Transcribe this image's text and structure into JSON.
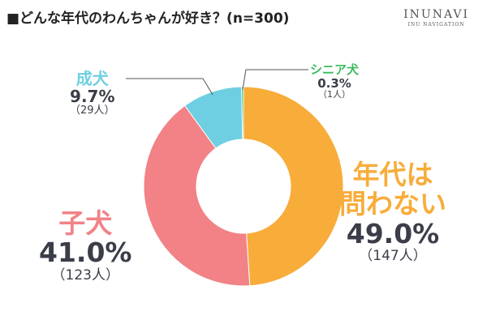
{
  "header": {
    "title": "■どんな年代のわんちゃんが好き？(n=300)",
    "logo_main": "INUNAVI",
    "logo_sub": "INU NAVIGATION"
  },
  "chart_data": {
    "type": "pie",
    "donut": true,
    "categories": [
      "年代は問わない",
      "子犬",
      "成犬",
      "シニア犬"
    ],
    "values": [
      49.0,
      41.0,
      9.7,
      0.3
    ],
    "percent_labels": [
      "49.0%",
      "41.0%",
      "9.7%",
      "0.3%"
    ],
    "count_labels": [
      "（147人）",
      "（123人）",
      "（29人）",
      "（1人）"
    ],
    "colors": [
      "#f8ac3a",
      "#f28286",
      "#6fcfe2",
      "#3bba5a"
    ],
    "label_lines": [
      [
        "年代は",
        "問わない"
      ],
      [
        "子犬"
      ],
      [
        "成犬"
      ],
      [
        "シニア犬"
      ]
    ],
    "title": "■どんな年代のわんちゃんが好き？(n=300)"
  }
}
